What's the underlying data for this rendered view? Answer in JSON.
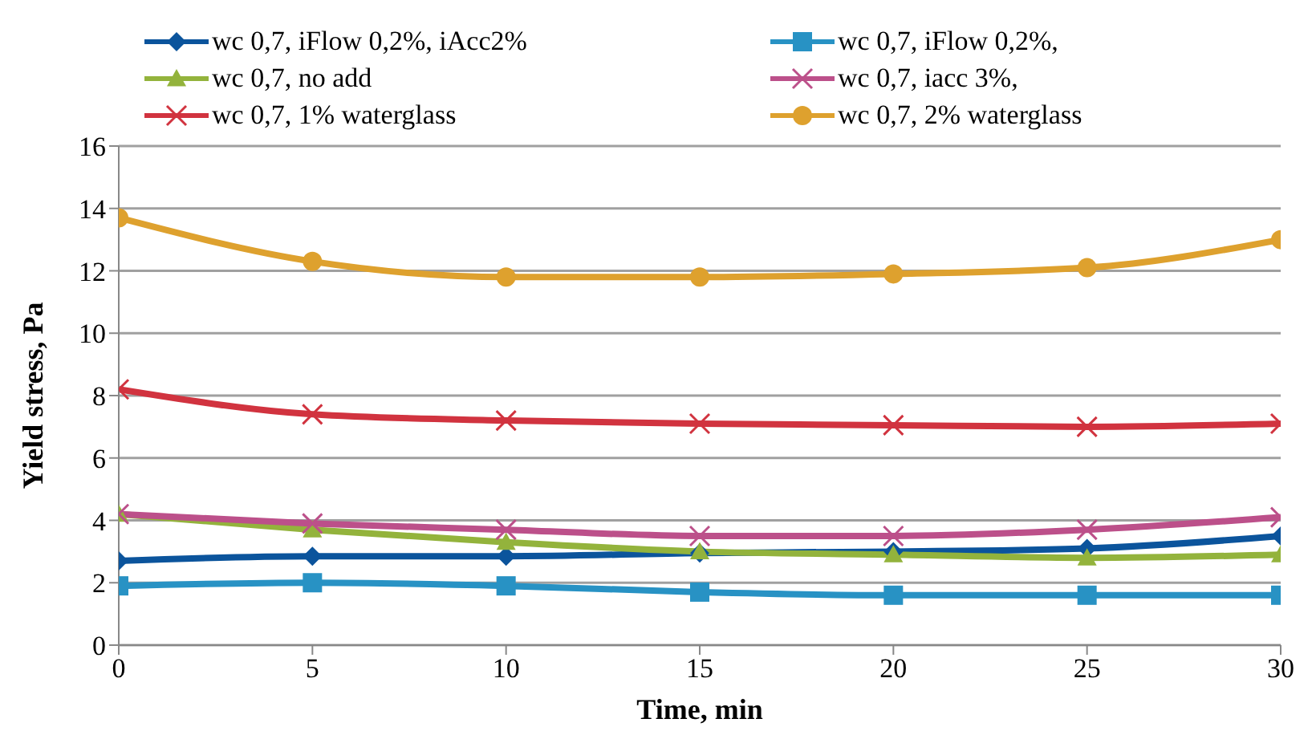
{
  "chart_data": {
    "type": "line",
    "xlabel": "Time, min",
    "ylabel": "Yield stress, Pa",
    "x": [
      0,
      5,
      10,
      15,
      20,
      25,
      30
    ],
    "xlim": [
      0,
      30
    ],
    "xticks": [
      0,
      5,
      10,
      15,
      20,
      25,
      30
    ],
    "ylim": [
      0,
      16
    ],
    "yticks": [
      0,
      2,
      4,
      6,
      8,
      10,
      12,
      14,
      16
    ],
    "grid": "y",
    "legend": "top",
    "series": [
      {
        "name": "wc 0,7, iFlow 0,2%, iAcc2%",
        "color": "#0b549c",
        "marker": "diamond",
        "values": [
          2.7,
          2.85,
          2.85,
          2.95,
          3.0,
          3.1,
          3.5
        ]
      },
      {
        "name": "wc 0,7, iFlow 0,2%,",
        "color": "#2892c4",
        "marker": "square",
        "values": [
          1.9,
          2.0,
          1.9,
          1.7,
          1.6,
          1.6,
          1.6
        ]
      },
      {
        "name": "wc 0,7, no add",
        "color": "#93b33c",
        "marker": "triangle",
        "values": [
          4.2,
          3.7,
          3.3,
          3.0,
          2.9,
          2.8,
          2.9
        ]
      },
      {
        "name": "wc 0,7, iacc 3%,",
        "color": "#bc508a",
        "marker": "cross",
        "values": [
          4.2,
          3.9,
          3.7,
          3.5,
          3.5,
          3.7,
          4.1
        ]
      },
      {
        "name": "wc 0,7, 1% waterglass",
        "color": "#d1333f",
        "marker": "cross",
        "values": [
          8.2,
          7.4,
          7.2,
          7.1,
          7.05,
          7.0,
          7.1
        ]
      },
      {
        "name": "wc 0,7, 2% waterglass",
        "color": "#dea12e",
        "marker": "circle",
        "values": [
          13.7,
          12.3,
          11.8,
          11.8,
          11.9,
          12.1,
          13.0
        ]
      }
    ]
  }
}
